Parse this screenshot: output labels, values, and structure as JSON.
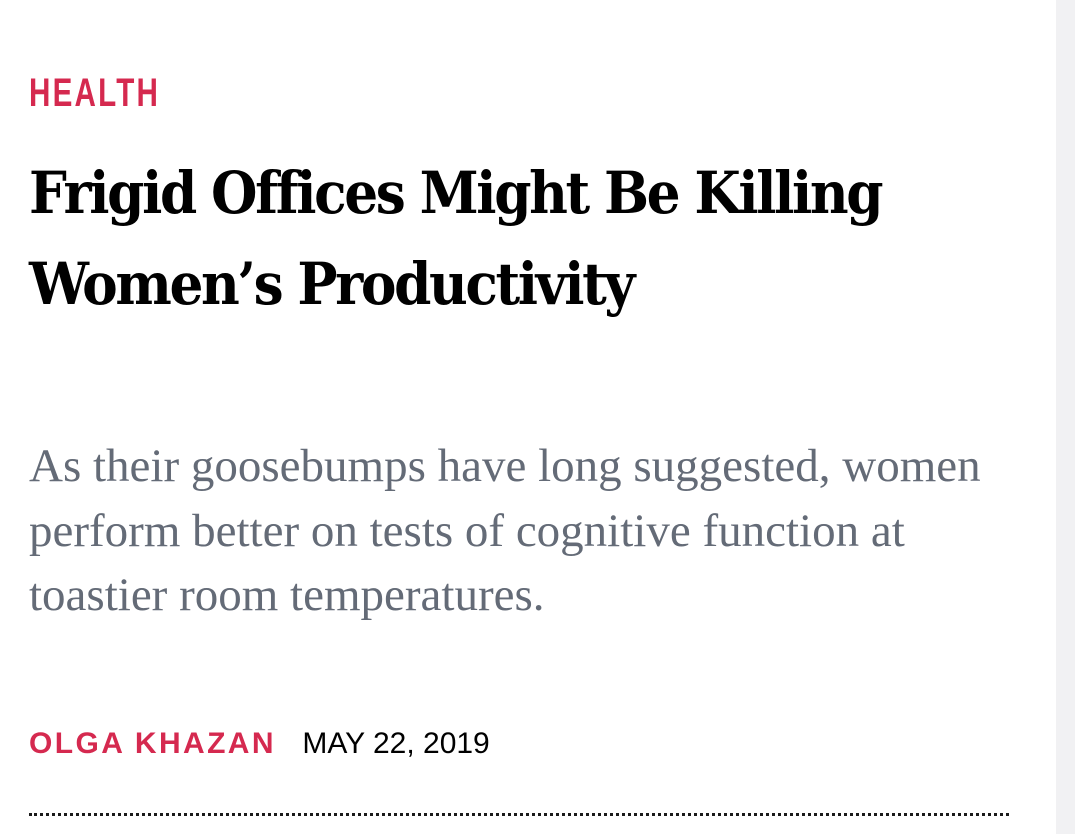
{
  "article": {
    "section": "HEALTH",
    "headline": "Frigid Offices Might Be Killing Women’s Productivity",
    "dek": "As their goosebumps have long suggested, women perform better on tests of cognitive function at toastier room temperatures.",
    "author": "OLGA KHAZAN",
    "date": "MAY 22, 2019"
  },
  "colors": {
    "accent": "#d5294f",
    "headline": "#000000",
    "dek": "#646b77",
    "background": "#ffffff"
  }
}
